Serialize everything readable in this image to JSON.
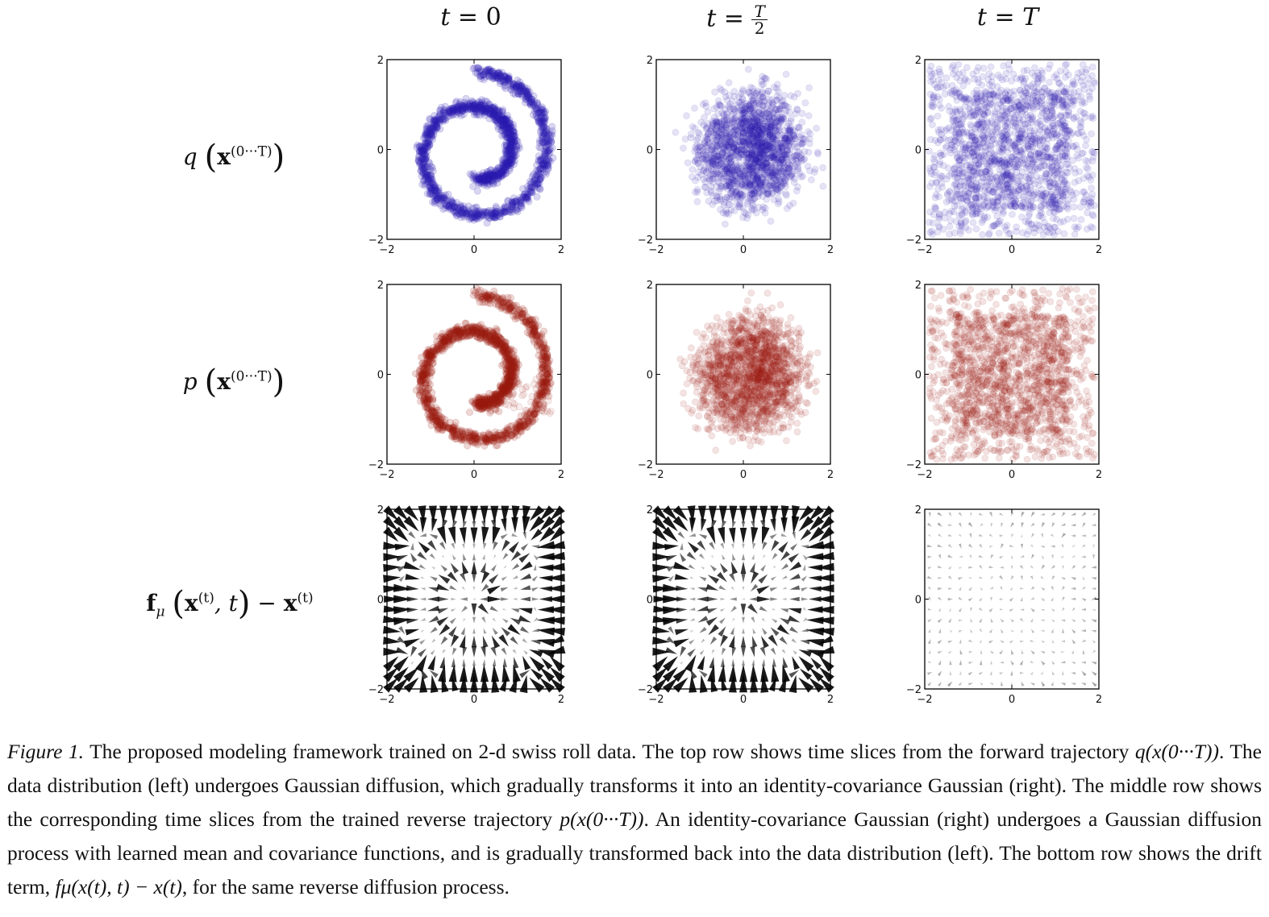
{
  "figure": {
    "column_titles": [
      "t = 0",
      "t = T/2",
      "t = T"
    ],
    "column_title_parts": {
      "t": "t",
      "eq": " = ",
      "zero": "0",
      "T": "T",
      "two": "2"
    },
    "row_labels": [
      {
        "fn": "q",
        "sup": "(0···T)"
      },
      {
        "fn": "p",
        "sup": "(0···T)"
      },
      {
        "fn": "f",
        "sub": "μ",
        "sup_t": "(t)",
        "tail": ", t",
        "minus": " − "
      }
    ],
    "colors": {
      "forward": "#2a1cb0",
      "reverse": "#9c1c12",
      "drift": "#000000"
    },
    "row_kinds": [
      "forward-scatter",
      "reverse-scatter",
      "drift-quiver"
    ],
    "time_fractions": [
      0.0,
      0.5,
      1.0
    ]
  },
  "chart_data": [
    {
      "type": "scatter",
      "title": "q(x(0···T)), t = 0",
      "xlim": [
        -2,
        2
      ],
      "ylim": [
        -2,
        2
      ],
      "x_ticks": [
        "−2",
        "0",
        "2"
      ],
      "y_ticks": [
        "−2",
        "0",
        "2"
      ],
      "series": [
        {
          "name": "forward trajectory",
          "description": "swiss roll"
        }
      ]
    },
    {
      "type": "scatter",
      "title": "q(x(0···T)), t = T/2",
      "xlim": [
        -2,
        2
      ],
      "ylim": [
        -2,
        2
      ],
      "x_ticks": [
        "−2",
        "0",
        "2"
      ],
      "y_ticks": [
        "−2",
        "0",
        "2"
      ]
    },
    {
      "type": "scatter",
      "title": "q(x(0···T)), t = T",
      "xlim": [
        -2,
        2
      ],
      "ylim": [
        -2,
        2
      ],
      "x_ticks": [
        "−2",
        "0",
        "2"
      ],
      "y_ticks": [
        "−2",
        "0",
        "2"
      ]
    },
    {
      "type": "scatter",
      "title": "p(x(0···T)), t = 0",
      "xlim": [
        -2,
        2
      ],
      "ylim": [
        -2,
        2
      ],
      "x_ticks": [
        "−2",
        "0",
        "2"
      ],
      "y_ticks": [
        "−2",
        "0",
        "2"
      ]
    },
    {
      "type": "scatter",
      "title": "p(x(0···T)), t = T/2",
      "xlim": [
        -2,
        2
      ],
      "ylim": [
        -2,
        2
      ],
      "x_ticks": [
        "−2",
        "0",
        "2"
      ],
      "y_ticks": [
        "−2",
        "0",
        "2"
      ]
    },
    {
      "type": "scatter",
      "title": "p(x(0···T)), t = T",
      "xlim": [
        -2,
        2
      ],
      "ylim": [
        -2,
        2
      ],
      "x_ticks": [
        "−2",
        "0",
        "2"
      ],
      "y_ticks": [
        "−2",
        "0",
        "2"
      ]
    },
    {
      "type": "quiver",
      "title": "drift, t = 0",
      "xlim": [
        -2,
        2
      ],
      "ylim": [
        -2,
        2
      ],
      "x_ticks": [
        "−2",
        "0",
        "2"
      ],
      "y_ticks": [
        "−2",
        "0",
        "2"
      ]
    },
    {
      "type": "quiver",
      "title": "drift, t = T/2",
      "xlim": [
        -2,
        2
      ],
      "ylim": [
        -2,
        2
      ],
      "x_ticks": [
        "−2",
        "0",
        "2"
      ],
      "y_ticks": [
        "−2",
        "0",
        "2"
      ]
    },
    {
      "type": "quiver",
      "title": "drift, t = T",
      "xlim": [
        -2,
        2
      ],
      "ylim": [
        -2,
        2
      ],
      "x_ticks": [
        "−2",
        "0",
        "2"
      ],
      "y_ticks": [
        "−2",
        "0",
        "2"
      ]
    }
  ],
  "caption": {
    "label": "Figure 1.",
    "p1": " The proposed modeling framework trained on 2-d swiss roll data. The top row shows time slices from the forward trajectory ",
    "q_math": "q(x(0···T))",
    "p2": ". The data distribution (left) undergoes Gaussian diffusion, which gradually transforms it into an identity-covariance Gaussian (right). The middle row shows the corresponding time slices from the trained reverse trajectory ",
    "p_math": "p(x(0···T))",
    "p3": ". An identity-covariance Gaussian (right) undergoes a Gaussian diffusion process with learned mean and covariance functions, and is gradually transformed back into the data distribution (left). The bottom row shows the drift term, ",
    "f_math": "fμ(x(t), t) − x(t)",
    "p4": ", for the same reverse diffusion process."
  }
}
